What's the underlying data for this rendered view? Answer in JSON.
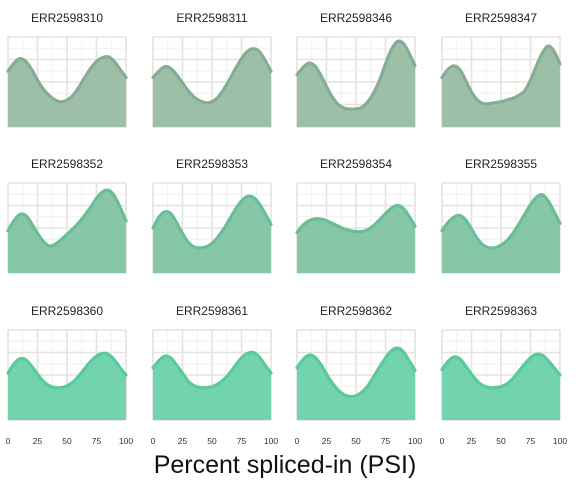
{
  "chart_data": {
    "type": "area",
    "xlabel": "Percent spliced-in (PSI)",
    "xlim": [
      0,
      100
    ],
    "x_ticks": [
      "0",
      "25",
      "50",
      "75",
      "100"
    ],
    "grid": true,
    "fill_colors": [
      "#9dbfa8",
      "#86c7a7",
      "#72d3ad"
    ],
    "line_colors": [
      "#86ad94",
      "#6bbd97",
      "#5bc99c"
    ],
    "x": [
      0,
      5,
      10,
      15,
      20,
      25,
      30,
      35,
      40,
      45,
      50,
      55,
      60,
      65,
      70,
      75,
      80,
      85,
      90,
      95,
      100
    ],
    "panels": [
      {
        "title": "ERR2598310",
        "values": [
          0.62,
          0.71,
          0.76,
          0.73,
          0.64,
          0.52,
          0.42,
          0.35,
          0.3,
          0.28,
          0.3,
          0.35,
          0.44,
          0.55,
          0.65,
          0.73,
          0.77,
          0.78,
          0.73,
          0.64,
          0.55
        ]
      },
      {
        "title": "ERR2598311",
        "values": [
          0.55,
          0.62,
          0.67,
          0.65,
          0.58,
          0.49,
          0.4,
          0.33,
          0.29,
          0.27,
          0.28,
          0.33,
          0.42,
          0.53,
          0.65,
          0.76,
          0.84,
          0.87,
          0.84,
          0.74,
          0.62
        ]
      },
      {
        "title": "ERR2598346",
        "values": [
          0.58,
          0.66,
          0.71,
          0.68,
          0.58,
          0.45,
          0.33,
          0.25,
          0.21,
          0.2,
          0.2,
          0.22,
          0.28,
          0.38,
          0.52,
          0.7,
          0.86,
          0.95,
          0.93,
          0.82,
          0.68
        ]
      },
      {
        "title": "ERR2598347",
        "values": [
          0.55,
          0.64,
          0.68,
          0.64,
          0.52,
          0.39,
          0.3,
          0.26,
          0.26,
          0.27,
          0.28,
          0.3,
          0.32,
          0.35,
          0.4,
          0.52,
          0.68,
          0.82,
          0.9,
          0.84,
          0.7
        ]
      },
      {
        "title": "ERR2598352",
        "values": [
          0.47,
          0.58,
          0.65,
          0.64,
          0.55,
          0.44,
          0.35,
          0.3,
          0.32,
          0.37,
          0.43,
          0.49,
          0.56,
          0.64,
          0.73,
          0.83,
          0.9,
          0.92,
          0.86,
          0.73,
          0.58
        ]
      },
      {
        "title": "ERR2598353",
        "values": [
          0.5,
          0.62,
          0.68,
          0.66,
          0.56,
          0.44,
          0.34,
          0.29,
          0.28,
          0.29,
          0.33,
          0.4,
          0.49,
          0.6,
          0.71,
          0.8,
          0.85,
          0.84,
          0.77,
          0.66,
          0.54
        ]
      },
      {
        "title": "ERR2598354",
        "values": [
          0.45,
          0.53,
          0.58,
          0.6,
          0.6,
          0.58,
          0.55,
          0.52,
          0.49,
          0.47,
          0.46,
          0.46,
          0.48,
          0.53,
          0.59,
          0.66,
          0.72,
          0.75,
          0.72,
          0.63,
          0.52
        ]
      },
      {
        "title": "ERR2598355",
        "values": [
          0.47,
          0.56,
          0.62,
          0.64,
          0.59,
          0.49,
          0.38,
          0.31,
          0.28,
          0.28,
          0.31,
          0.36,
          0.44,
          0.54,
          0.65,
          0.76,
          0.84,
          0.87,
          0.8,
          0.68,
          0.55
        ]
      },
      {
        "title": "ERR2598360",
        "values": [
          0.52,
          0.62,
          0.68,
          0.67,
          0.6,
          0.51,
          0.43,
          0.38,
          0.36,
          0.36,
          0.38,
          0.42,
          0.49,
          0.57,
          0.65,
          0.71,
          0.74,
          0.73,
          0.67,
          0.58,
          0.5
        ]
      },
      {
        "title": "ERR2598361",
        "values": [
          0.58,
          0.66,
          0.71,
          0.69,
          0.61,
          0.52,
          0.43,
          0.38,
          0.36,
          0.36,
          0.37,
          0.4,
          0.45,
          0.52,
          0.61,
          0.69,
          0.74,
          0.75,
          0.7,
          0.61,
          0.52
        ]
      },
      {
        "title": "ERR2598362",
        "values": [
          0.58,
          0.67,
          0.72,
          0.7,
          0.62,
          0.51,
          0.41,
          0.33,
          0.28,
          0.26,
          0.27,
          0.31,
          0.38,
          0.48,
          0.59,
          0.69,
          0.77,
          0.8,
          0.76,
          0.66,
          0.55
        ]
      },
      {
        "title": "ERR2598363",
        "values": [
          0.56,
          0.65,
          0.7,
          0.68,
          0.6,
          0.51,
          0.43,
          0.38,
          0.36,
          0.36,
          0.37,
          0.4,
          0.46,
          0.54,
          0.62,
          0.69,
          0.73,
          0.72,
          0.66,
          0.58,
          0.5
        ]
      }
    ]
  }
}
